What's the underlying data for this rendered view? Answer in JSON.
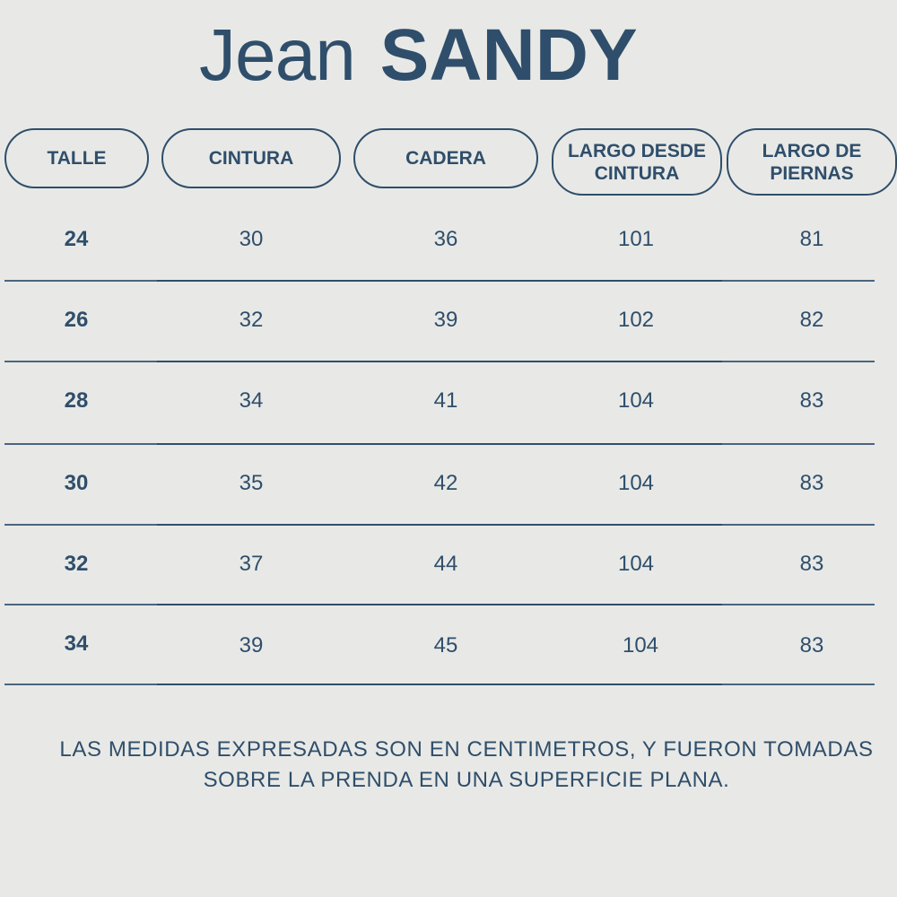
{
  "title": {
    "thin": "Jean",
    "bold": "SANDY"
  },
  "headers": [
    {
      "line1": "TALLE",
      "line2": ""
    },
    {
      "line1": "CINTURA",
      "line2": ""
    },
    {
      "line1": "CADERA",
      "line2": ""
    },
    {
      "line1": "LARGO DESDE",
      "line2": "CINTURA"
    },
    {
      "line1": "LARGO DE",
      "line2": "PIERNAS"
    }
  ],
  "rows": [
    {
      "talle": "24",
      "cintura": "30",
      "cadera": "36",
      "largo_cintura": "101",
      "largo_piernas": "81"
    },
    {
      "talle": "26",
      "cintura": "32",
      "cadera": "39",
      "largo_cintura": "102",
      "largo_piernas": "82"
    },
    {
      "talle": "28",
      "cintura": "34",
      "cadera": "41",
      "largo_cintura": "104",
      "largo_piernas": "83"
    },
    {
      "talle": "30",
      "cintura": "35",
      "cadera": "42",
      "largo_cintura": "104",
      "largo_piernas": "83"
    },
    {
      "talle": "32",
      "cintura": "37",
      "cadera": "44",
      "largo_cintura": "104",
      "largo_piernas": "83"
    },
    {
      "talle": "34",
      "cintura": "39",
      "cadera": "45",
      "largo_cintura": "104",
      "largo_piernas": "83"
    }
  ],
  "note": {
    "line1": "LAS MEDIDAS EXPRESADAS SON EN CENTIMETROS, Y FUERON TOMADAS",
    "line2": "SOBRE LA PRENDA EN UNA SUPERFICIE PLANA."
  }
}
